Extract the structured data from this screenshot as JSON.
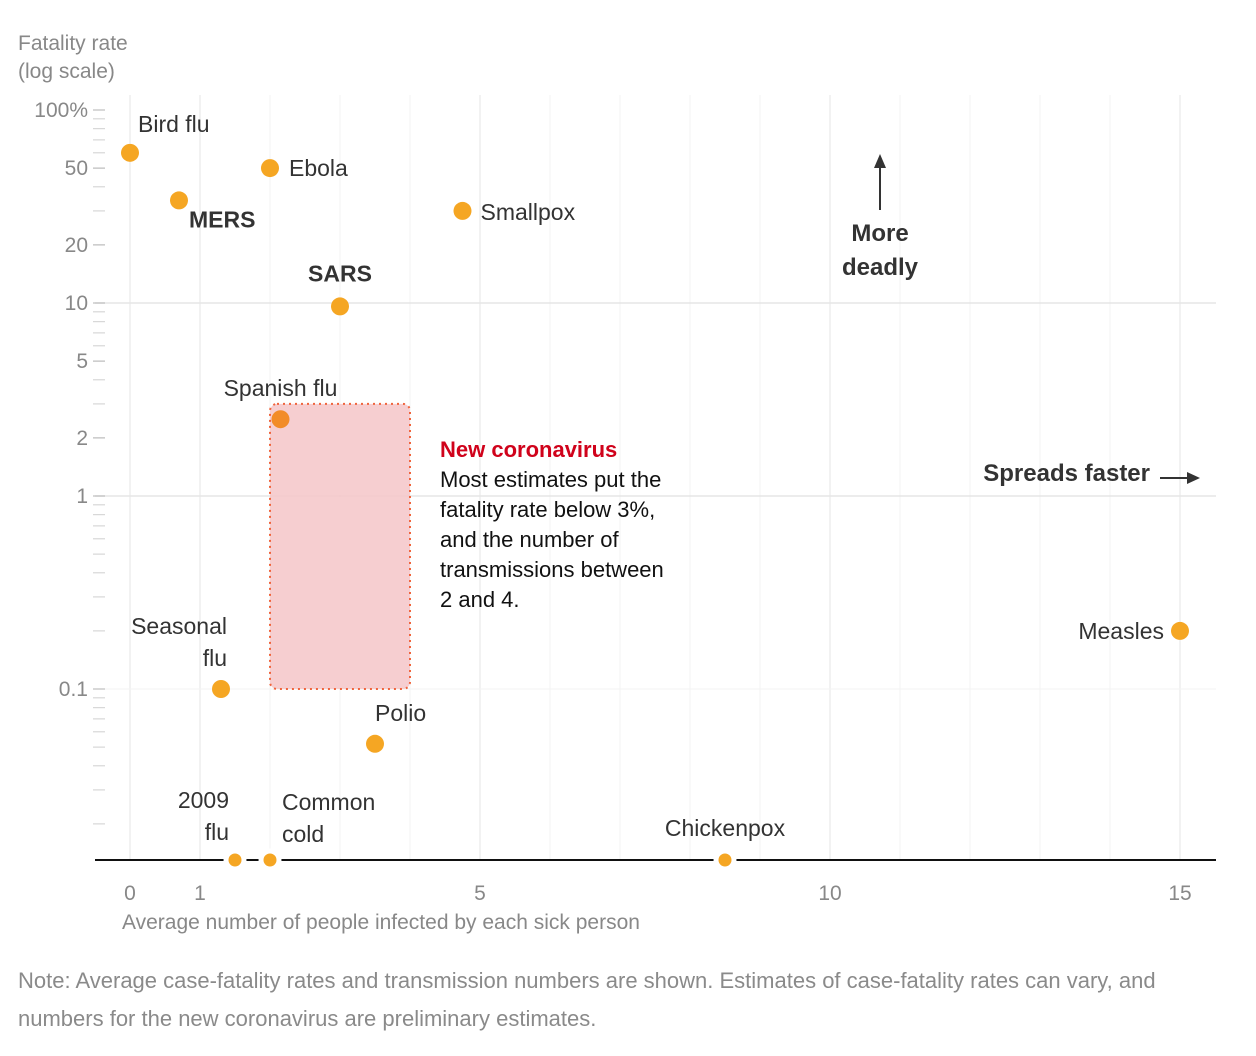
{
  "chart_data": {
    "type": "scatter",
    "ylabel_lines": [
      "Fatality rate",
      "(log scale)"
    ],
    "xlabel": "Average number of people infected by each sick person",
    "y_scale": "log",
    "ylim": [
      0.013,
      100
    ],
    "xlim": [
      -1,
      15.5
    ],
    "y_ticks": [
      {
        "value": 100,
        "label": "100%"
      },
      {
        "value": 50,
        "label": "50"
      },
      {
        "value": 20,
        "label": "20"
      },
      {
        "value": 10,
        "label": "10"
      },
      {
        "value": 5,
        "label": "5"
      },
      {
        "value": 2,
        "label": "2"
      },
      {
        "value": 1,
        "label": "1"
      },
      {
        "value": 0.1,
        "label": "0.1"
      }
    ],
    "x_ticks": [
      {
        "value": 0,
        "label": "0"
      },
      {
        "value": 1,
        "label": "1"
      },
      {
        "value": 5,
        "label": "5"
      },
      {
        "value": 10,
        "label": "10"
      },
      {
        "value": 15,
        "label": "15"
      }
    ],
    "points": [
      {
        "name": "Bird flu",
        "label_lines": [
          "Bird flu"
        ],
        "x": 0,
        "y": 60,
        "bold": false
      },
      {
        "name": "Ebola",
        "label_lines": [
          "Ebola"
        ],
        "x": 2.0,
        "y": 50,
        "bold": false
      },
      {
        "name": "MERS",
        "label_lines": [
          "MERS"
        ],
        "x": 0.7,
        "y": 34,
        "bold": true
      },
      {
        "name": "Smallpox",
        "label_lines": [
          "Smallpox"
        ],
        "x": 4.75,
        "y": 30,
        "bold": false
      },
      {
        "name": "SARS",
        "label_lines": [
          "SARS"
        ],
        "x": 3.0,
        "y": 9.6,
        "bold": true
      },
      {
        "name": "Spanish flu",
        "label_lines": [
          "Spanish flu"
        ],
        "x": 2.15,
        "y": 2.5,
        "bold": false
      },
      {
        "name": "Seasonal flu",
        "label_lines": [
          "Seasonal",
          "flu"
        ],
        "x": 1.3,
        "y": 0.1,
        "bold": false
      },
      {
        "name": "Polio",
        "label_lines": [
          "Polio"
        ],
        "x": 3.5,
        "y": 0.052,
        "bold": false
      },
      {
        "name": "Measles",
        "label_lines": [
          "Measles"
        ],
        "x": 15,
        "y": 0.2,
        "bold": false
      },
      {
        "name": "2009 flu",
        "label_lines": [
          "2009",
          "flu"
        ],
        "x": 1.5,
        "y": "baseline",
        "bold": false
      },
      {
        "name": "Common cold",
        "label_lines": [
          "Common",
          "cold"
        ],
        "x": 2.0,
        "y": "baseline",
        "bold": false
      },
      {
        "name": "Chickenpox",
        "label_lines": [
          "Chickenpox"
        ],
        "x": 8.5,
        "y": "baseline",
        "bold": false
      }
    ],
    "highlight_region": {
      "x_range": [
        2,
        4
      ],
      "y_range": [
        0.1,
        3
      ],
      "title": "New coronavirus",
      "text_lines": [
        "Most estimates put the",
        "fatality rate below 3%,",
        "and the number of",
        "transmissions between",
        "2 and 4."
      ]
    },
    "annotations": {
      "more_deadly": [
        "More",
        "deadly"
      ],
      "spreads_faster": "Spreads faster"
    },
    "grid": true,
    "colors": {
      "point": "#F5A623",
      "point_highlight": "#F28C28",
      "region_fill": "#F4C5C8",
      "region_border": "#F0643C",
      "coronavirus_title": "#D0021B",
      "grid": "#e6e6e6",
      "minor_grid": "#f3f3f3"
    }
  },
  "note": "Note: Average case-fatality rates and transmission numbers are shown. Estimates of case-fatality rates can vary, and numbers for the new coronavirus are preliminary estimates."
}
